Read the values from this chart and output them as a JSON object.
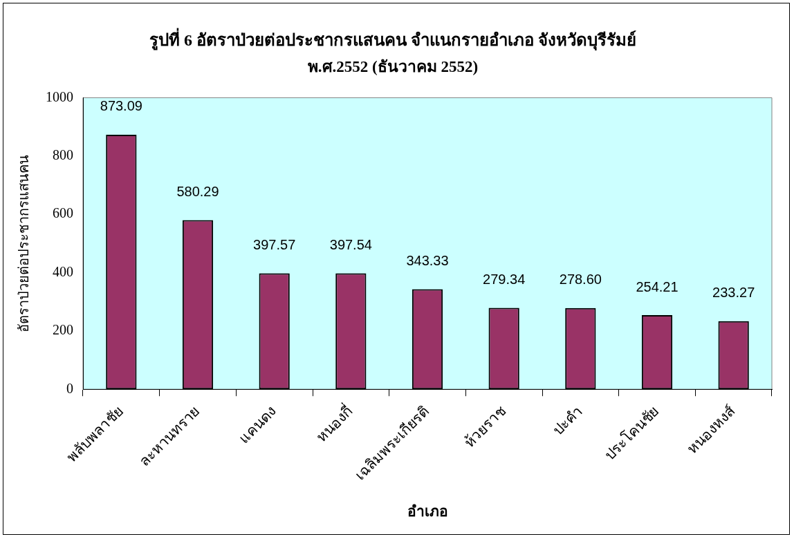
{
  "chart_data": {
    "type": "bar",
    "title": "รูปที่ 6 อัตราป่วยต่อประชากรแสนคน จำแนกรายอำเภอ จังหวัดบุรีรัมย์",
    "subtitle": "พ.ศ.2552 (ธันวาคม 2552)",
    "xlabel": "อำเภอ",
    "ylabel": "อัตราป่วยต่อประชากรแสนคน",
    "categories": [
      "พลับพลาชัย",
      "ละหานทราย",
      "แคนดง",
      "หนองกี่",
      "เฉลิมพระเกียรติ",
      "ห้วยราช",
      "ปะคำ",
      "ประโคนชัย",
      "หนองหงส์"
    ],
    "values": [
      873.09,
      580.29,
      397.57,
      397.54,
      343.33,
      279.34,
      278.6,
      254.21,
      233.27
    ],
    "value_labels": [
      "873.09",
      "580.29",
      "397.57",
      "397.54",
      "343.33",
      "279.34",
      "278.60",
      "254.21",
      "233.27"
    ],
    "color": "#993366",
    "ylim": [
      0,
      1000
    ],
    "yticks": [
      0,
      200,
      400,
      600,
      800,
      1000
    ],
    "grid": false,
    "legend": false
  }
}
